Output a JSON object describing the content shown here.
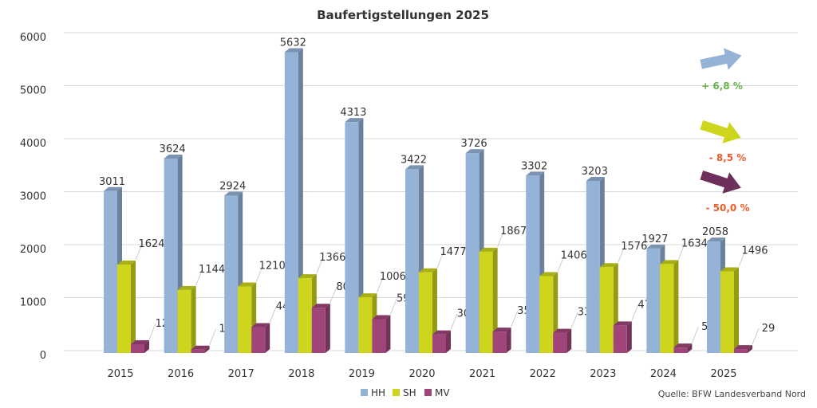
{
  "chart_data": {
    "type": "bar",
    "title": "Baufertigstellungen 2025",
    "categories": [
      "2015",
      "2016",
      "2017",
      "2018",
      "2019",
      "2020",
      "2021",
      "2022",
      "2023",
      "2024",
      "2025"
    ],
    "series": [
      {
        "name": "HH",
        "color": "#95b3d7",
        "values": [
          3011,
          3624,
          2924,
          5632,
          4313,
          3422,
          3726,
          3302,
          3203,
          1927,
          2058
        ]
      },
      {
        "name": "SH",
        "color": "#cdd61c",
        "values": [
          1624,
          1144,
          1210,
          1366,
          1006,
          1477,
          1867,
          1406,
          1576,
          1634,
          1496
        ]
      },
      {
        "name": "MV",
        "color": "#a0457a",
        "values": [
          120,
          19,
          443,
          809,
          594,
          306,
          359,
          337,
          476,
          58,
          29
        ]
      }
    ],
    "ylim": [
      0,
      6000
    ],
    "yticks": [
      0,
      1000,
      2000,
      3000,
      4000,
      5000,
      6000
    ],
    "grid": true,
    "legend": "bottom-center",
    "trends": [
      {
        "series": "HH",
        "direction": "up",
        "label": "+ 6,8 %",
        "label_color": "#6bb24a",
        "arrow_color": "#95b3d7"
      },
      {
        "series": "SH",
        "direction": "down",
        "label": "- 8,5 %",
        "label_color": "#f05a28",
        "arrow_color": "#cdd61c"
      },
      {
        "series": "MV",
        "direction": "down",
        "label": "- 50,0 %",
        "label_color": "#f05a28",
        "arrow_color": "#6e2f5a"
      }
    ],
    "source": "Quelle: BFW Landesverband Nord"
  }
}
